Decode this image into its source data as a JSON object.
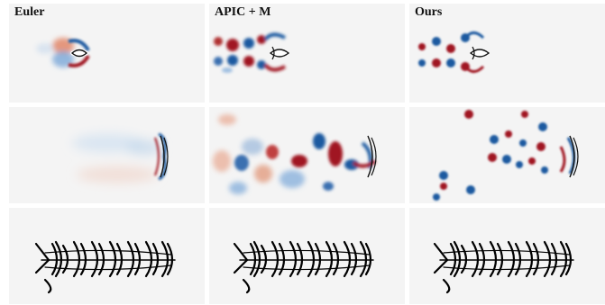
{
  "figure": {
    "columns": [
      {
        "id": "euler",
        "label": "Euler"
      },
      {
        "id": "apic_m",
        "label": "APIC + M"
      },
      {
        "id": "ours",
        "label": "Ours"
      }
    ],
    "colors": {
      "background": "#f4f4f4",
      "positive_vorticity": "#a01820",
      "negative_vorticity": "#1e5aa0",
      "trajectory": "#000000"
    }
  }
}
